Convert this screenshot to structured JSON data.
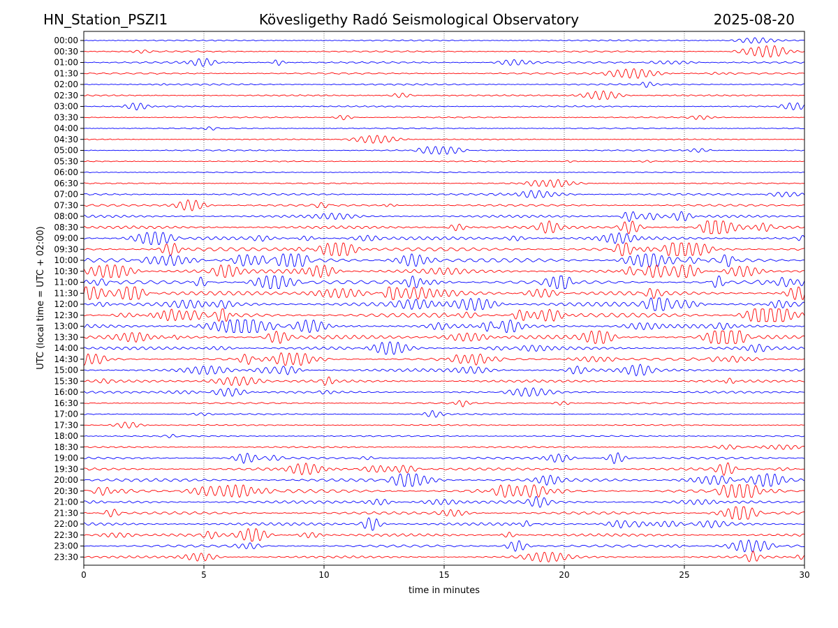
{
  "header": {
    "station": "HN_Station_PSZI1",
    "observatory": "Kövesligethy Radó Seismological Observatory",
    "date": "2025-08-20"
  },
  "chart_data": {
    "type": "line",
    "title": "Kövesligethy Radó Seismological Observatory",
    "xlabel": "time in minutes",
    "ylabel": "UTC (local time = UTC + 02:00)",
    "xlim": [
      0,
      30
    ],
    "x_ticks": [
      0,
      5,
      10,
      15,
      20,
      25,
      30
    ],
    "grid": "vertical dotted lines at x ticks",
    "rows": [
      "00:00",
      "00:30",
      "01:00",
      "01:30",
      "02:00",
      "02:30",
      "03:00",
      "03:30",
      "04:00",
      "04:30",
      "05:00",
      "05:30",
      "06:00",
      "06:30",
      "07:00",
      "07:30",
      "08:00",
      "08:30",
      "09:00",
      "09:30",
      "10:00",
      "10:30",
      "11:00",
      "11:30",
      "12:00",
      "12:30",
      "13:00",
      "13:30",
      "14:00",
      "14:30",
      "15:00",
      "15:30",
      "16:00",
      "16:30",
      "17:00",
      "17:30",
      "18:00",
      "18:30",
      "19:00",
      "19:30",
      "20:00",
      "20:30",
      "21:00",
      "21:30",
      "22:00",
      "22:30",
      "23:00",
      "23:30"
    ],
    "row_colors": [
      "#0000ff",
      "#ff0000"
    ],
    "trace_activity": [
      0.15,
      0.2,
      0.25,
      0.22,
      0.25,
      0.18,
      0.15,
      0.12,
      0.1,
      0.08,
      0.15,
      0.1,
      0.06,
      0.12,
      0.3,
      0.35,
      0.45,
      0.55,
      0.65,
      0.75,
      0.85,
      0.8,
      0.75,
      0.9,
      0.95,
      0.9,
      0.85,
      0.8,
      0.6,
      0.5,
      0.6,
      0.45,
      0.35,
      0.2,
      0.15,
      0.12,
      0.15,
      0.2,
      0.35,
      0.45,
      0.6,
      0.7,
      0.55,
      0.5,
      0.55,
      0.5,
      0.45,
      0.4
    ]
  }
}
